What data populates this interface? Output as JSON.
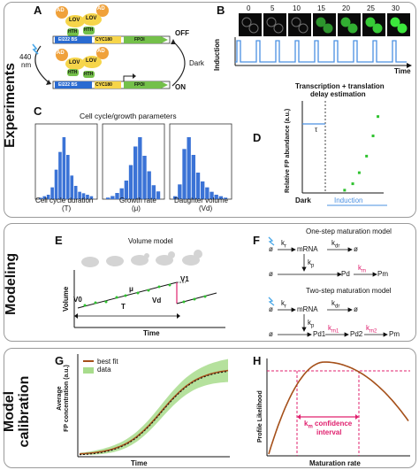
{
  "sections": {
    "experiments": "Experiments",
    "modeling": "Modeling",
    "calibration_line1": "Model",
    "calibration_line2": "calibration"
  },
  "panelA": {
    "letter": "A",
    "ad": "AD",
    "lov": "LOV",
    "hth": "HTH",
    "ei222": "EI222 BS",
    "cyc180": "CYC180",
    "fpoi": "FPOI",
    "off": "OFF",
    "on": "ON",
    "nm1": "440",
    "nm2": "nm",
    "dark": "Dark"
  },
  "panelB": {
    "letter": "B",
    "times": [
      "0",
      "5",
      "10",
      "15",
      "20",
      "25",
      "30"
    ],
    "induction": "Induction",
    "time": "Time"
  },
  "panelC": {
    "letter": "C",
    "title": "Cell cycle/growth parameters",
    "labels": [
      [
        "Cell cycle duration",
        "(T)"
      ],
      [
        "Growth rate",
        "(μ)"
      ],
      [
        "Daughter volume",
        "(Vd)"
      ]
    ],
    "hist1": [
      1,
      2,
      3,
      8,
      20,
      32,
      42,
      30,
      16,
      9,
      5,
      4,
      3,
      2
    ],
    "hist2": [
      1,
      2,
      4,
      7,
      12,
      22,
      34,
      40,
      28,
      18,
      9,
      5
    ],
    "hist3": [
      2,
      10,
      34,
      42,
      30,
      18,
      12,
      8,
      5,
      3,
      2,
      1
    ]
  },
  "panelD": {
    "letter": "D",
    "title1": "Transcription + translation",
    "title2": "delay estimation",
    "ylabel": "Relative FP abundance (a.u.)",
    "tau": "τ",
    "dark": "Dark",
    "induction": "Induction",
    "points": [
      [
        0.52,
        0.03
      ],
      [
        0.62,
        0.1
      ],
      [
        0.7,
        0.22
      ],
      [
        0.79,
        0.4
      ],
      [
        0.87,
        0.62
      ],
      [
        0.93,
        0.83
      ]
    ]
  },
  "panelE": {
    "letter": "E",
    "title": "Volume model",
    "ylabel": "Volume",
    "xlabel": "Time",
    "v0": "V0",
    "v1": "V1",
    "mu": "μ",
    "T": "T",
    "vd": "Vd"
  },
  "panelF": {
    "letter": "F",
    "one_title": "One-step maturation model",
    "two_title": "Two-step maturation model",
    "empty": "ø",
    "mrna": "mRNA",
    "kr": "k",
    "kr_sub": "r",
    "kdr": "k",
    "kdr_sub": "dr",
    "kp": "k",
    "kp_sub": "p",
    "km": "k",
    "km_sub": "m",
    "km1_sub": "m1",
    "km2_sub": "m2",
    "pd": "Pd",
    "pm": "Pm",
    "pd1": "Pd1",
    "pd2": "Pd2"
  },
  "panelG": {
    "letter": "G",
    "legend_fit": "best fit",
    "legend_data": "data",
    "ylabel1": "Average",
    "ylabel2": "FP concentration (a.u.)",
    "xlabel": "Time"
  },
  "panelH": {
    "letter": "H",
    "ylabel": "Profile Likelihood",
    "xlabel": "Maturation rate",
    "ci1": "k",
    "ci1_sub": "m",
    "ci1_rest": " confidence",
    "ci2": "interval"
  },
  "colors": {
    "orange": "#f0a13a",
    "yellow": "#f6d54a",
    "green": "#74c04a",
    "blue": "#2a6bd1",
    "histblue": "#3b73d6",
    "pink": "#e0206e",
    "brown": "#a5501a",
    "fieldgreen": "#2ec22e"
  }
}
